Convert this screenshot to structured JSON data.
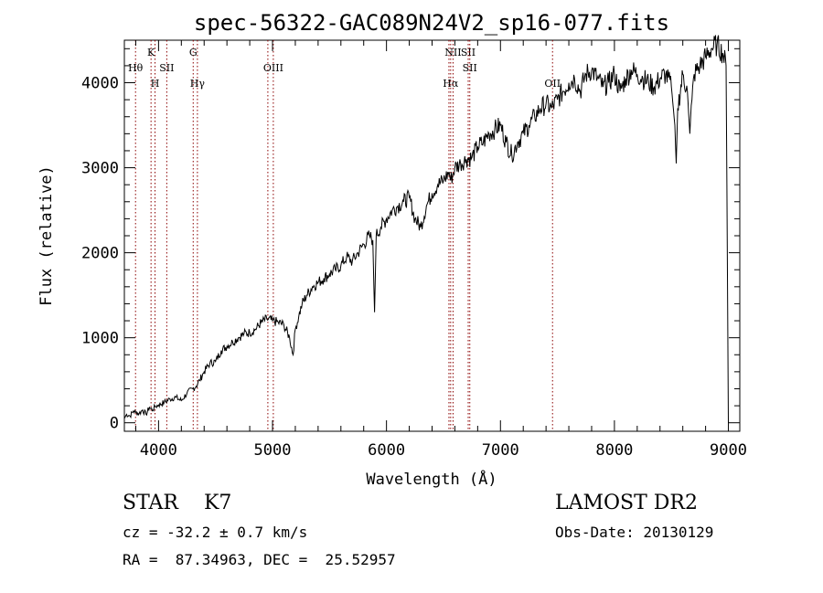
{
  "chart_data": {
    "type": "line",
    "title": "spec-56322-GAC089N24V2_sp16-077.fits",
    "xlabel": "Wavelength (Å)",
    "ylabel": "Flux (relative)",
    "xlim": [
      3700,
      9100
    ],
    "ylim": [
      -100,
      4500
    ],
    "x_ticks": [
      4000,
      5000,
      6000,
      7000,
      8000,
      9000
    ],
    "y_ticks": [
      0,
      1000,
      2000,
      3000,
      4000
    ],
    "x_tick_labels": [
      "4000",
      "5000",
      "6000",
      "7000",
      "8000",
      "9000"
    ],
    "y_tick_labels": [
      "0",
      "1000",
      "2000",
      "3000",
      "4000"
    ],
    "grid": false,
    "legend": "none",
    "line_color": "#000000",
    "marker_color": "#8b0000",
    "series": [
      {
        "x": [
          3700,
          3720,
          3750,
          3780,
          3800,
          3830,
          3860,
          3890,
          3920,
          3950,
          3970,
          4000,
          4050,
          4100,
          4150,
          4200,
          4250,
          4300,
          4330,
          4360,
          4400,
          4450,
          4500,
          4550,
          4600,
          4650,
          4700,
          4750,
          4800,
          4850,
          4900,
          4950,
          5000,
          5050,
          5100,
          5150,
          5180,
          5200,
          5230,
          5260,
          5300,
          5350,
          5400,
          5450,
          5500,
          5550,
          5600,
          5650,
          5700,
          5750,
          5800,
          5850,
          5880,
          5895,
          5910,
          5950,
          6000,
          6050,
          6100,
          6150,
          6200,
          6250,
          6300,
          6350,
          6400,
          6450,
          6500,
          6550,
          6562,
          6600,
          6650,
          6700,
          6750,
          6800,
          6850,
          6900,
          6950,
          7000,
          7050,
          7100,
          7150,
          7200,
          7250,
          7300,
          7350,
          7400,
          7450,
          7500,
          7550,
          7600,
          7650,
          7700,
          7750,
          7800,
          7850,
          7900,
          7950,
          8000,
          8050,
          8100,
          8150,
          8200,
          8250,
          8300,
          8350,
          8400,
          8450,
          8500,
          8530,
          8542,
          8555,
          8600,
          8640,
          8662,
          8680,
          8700,
          8750,
          8800,
          8850,
          8900,
          8950,
          8980,
          9000
        ],
        "y": [
          50,
          100,
          80,
          140,
          120,
          110,
          150,
          100,
          180,
          150,
          190,
          210,
          240,
          280,
          300,
          260,
          350,
          400,
          430,
          500,
          600,
          700,
          720,
          850,
          900,
          950,
          1000,
          1050,
          1060,
          1100,
          1180,
          1220,
          1200,
          1180,
          1150,
          1000,
          800,
          1100,
          1250,
          1400,
          1500,
          1600,
          1650,
          1700,
          1750,
          1800,
          1850,
          1950,
          1900,
          2000,
          2100,
          2200,
          2150,
          1300,
          2200,
          2300,
          2400,
          2500,
          2550,
          2600,
          2650,
          2400,
          2300,
          2550,
          2700,
          2800,
          2850,
          2950,
          2850,
          3000,
          3050,
          3100,
          3120,
          3250,
          3300,
          3400,
          3450,
          3500,
          3300,
          3150,
          3300,
          3400,
          3500,
          3600,
          3700,
          3750,
          3700,
          3800,
          3900,
          4000,
          4050,
          3900,
          4100,
          4150,
          4050,
          3950,
          4000,
          4100,
          3900,
          4050,
          4150,
          4100,
          4050,
          4000,
          3950,
          4050,
          4100,
          3950,
          3500,
          3050,
          3700,
          4100,
          3900,
          3400,
          3800,
          4100,
          4200,
          4300,
          4400,
          4450,
          4350,
          4200,
          0
        ]
      }
    ],
    "line_markers": [
      {
        "x": 3798,
        "label": "Hθ",
        "row": 2
      },
      {
        "x": 3934,
        "label": "K",
        "row": 1
      },
      {
        "x": 3969,
        "label": "H",
        "row": 3
      },
      {
        "x": 4072,
        "label": "SII",
        "row": 2
      },
      {
        "x": 4304,
        "label": "G",
        "row": 1
      },
      {
        "x": 4341,
        "label": "Hγ",
        "row": 3
      },
      {
        "x": 4959,
        "label": "",
        "row": 0
      },
      {
        "x": 5007,
        "label": "OIII",
        "row": 2
      },
      {
        "x": 6548,
        "label": "",
        "row": 0
      },
      {
        "x": 6563,
        "label": "Hα",
        "row": 3
      },
      {
        "x": 6584,
        "label": "NII",
        "row": 1
      },
      {
        "x": 6717,
        "label": "SII",
        "row": 1
      },
      {
        "x": 6731,
        "label": "SII",
        "row": 2
      },
      {
        "x": 7457,
        "label": "OII",
        "row": 3
      }
    ]
  },
  "info": {
    "class_text": "STAR    K7",
    "cz_text": "cz = -32.2 ± 0.7 km/s",
    "coords_text": "RA =  87.34963, DEC =  25.52957",
    "survey_text": "LAMOST DR2",
    "obs_text": "Obs-Date: 20130129"
  }
}
